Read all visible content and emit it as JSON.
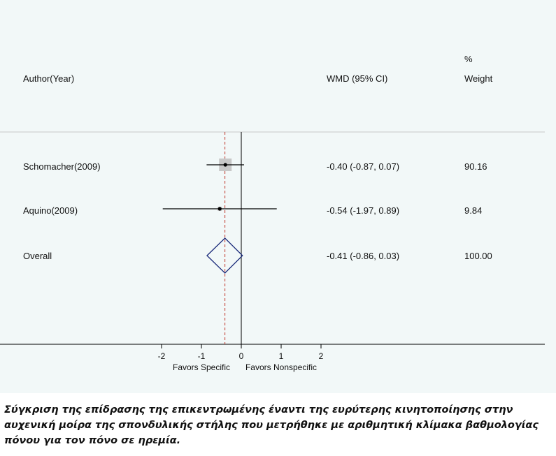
{
  "chart_data": {
    "type": "forest",
    "headers": {
      "study": "Author(Year)",
      "effect": "WMD (95% CI)",
      "weight_top": "%",
      "weight_bottom": "Weight"
    },
    "studies": [
      {
        "label": "Schomacher(2009)",
        "estimate": -0.4,
        "lower": -0.87,
        "upper": 0.07,
        "ci_text": "-0.40 (-0.87, 0.07)",
        "weight": 90.16,
        "weight_text": "90.16"
      },
      {
        "label": "Aquino(2009)",
        "estimate": -0.54,
        "lower": -1.97,
        "upper": 0.89,
        "ci_text": "-0.54 (-1.97, 0.89)",
        "weight": 9.84,
        "weight_text": "9.84"
      }
    ],
    "overall": {
      "label": "Overall",
      "estimate": -0.41,
      "lower": -0.86,
      "upper": 0.03,
      "ci_text": "-0.41 (-0.86, 0.03)",
      "weight_text": "100.00"
    },
    "x_ticks": [
      -2,
      -1,
      0,
      1,
      2
    ],
    "x_tick_labels": [
      "-2",
      "-1",
      "0",
      "1",
      "2"
    ],
    "xlim": [
      -2,
      2
    ],
    "xlabel_left": "Favors Specific",
    "xlabel_right": "Favors Nonspecific",
    "colors": {
      "panel": "#f2f8f8",
      "box": "#c8c8c8",
      "diamond": "#1a2a7a",
      "overall_line": "#c0392b",
      "line": "#000000"
    }
  },
  "caption": "Σύγκριση της επίδρασης της επικεντρωμένης έναντι της ευρύτερης κινητοποίησης στην αυχενική μοίρα της σπονδυλικής στήλης που μετρήθηκε με αριθμητική κλίμακα βαθμολογίας πόνου για τον πόνο σε ηρεμία."
}
